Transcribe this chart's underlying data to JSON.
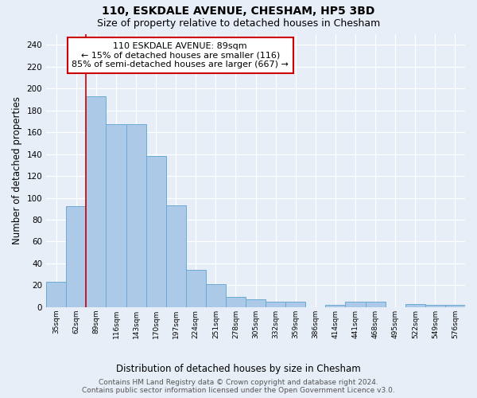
{
  "title": "110, ESKDALE AVENUE, CHESHAM, HP5 3BD",
  "subtitle": "Size of property relative to detached houses in Chesham",
  "xlabel": "Distribution of detached houses by size in Chesham",
  "ylabel": "Number of detached properties",
  "categories": [
    "35sqm",
    "62sqm",
    "89sqm",
    "116sqm",
    "143sqm",
    "170sqm",
    "197sqm",
    "224sqm",
    "251sqm",
    "278sqm",
    "305sqm",
    "332sqm",
    "359sqm",
    "386sqm",
    "414sqm",
    "441sqm",
    "468sqm",
    "495sqm",
    "522sqm",
    "549sqm",
    "576sqm"
  ],
  "values": [
    23,
    92,
    193,
    167,
    167,
    138,
    93,
    34,
    21,
    9,
    7,
    5,
    5,
    0,
    2,
    5,
    5,
    0,
    3,
    2,
    2
  ],
  "bar_color": "#adc9e8",
  "bar_edge_color": "#6aaad4",
  "vline_index": 2,
  "vline_color": "#cc0000",
  "annotation_text": "110 ESKDALE AVENUE: 89sqm\n← 15% of detached houses are smaller (116)\n85% of semi-detached houses are larger (667) →",
  "annotation_box_color": "#ffffff",
  "annotation_box_edge_color": "#cc0000",
  "ylim": [
    0,
    250
  ],
  "yticks": [
    0,
    20,
    40,
    60,
    80,
    100,
    120,
    140,
    160,
    180,
    200,
    220,
    240
  ],
  "background_color": "#e8eef8",
  "plot_bg_color": "#e8eef8",
  "footer_text": "Contains HM Land Registry data © Crown copyright and database right 2024.\nContains public sector information licensed under the Open Government Licence v3.0.",
  "title_fontsize": 10,
  "subtitle_fontsize": 9,
  "xlabel_fontsize": 8.5,
  "ylabel_fontsize": 8.5,
  "annotation_fontsize": 8,
  "footer_fontsize": 6.5
}
